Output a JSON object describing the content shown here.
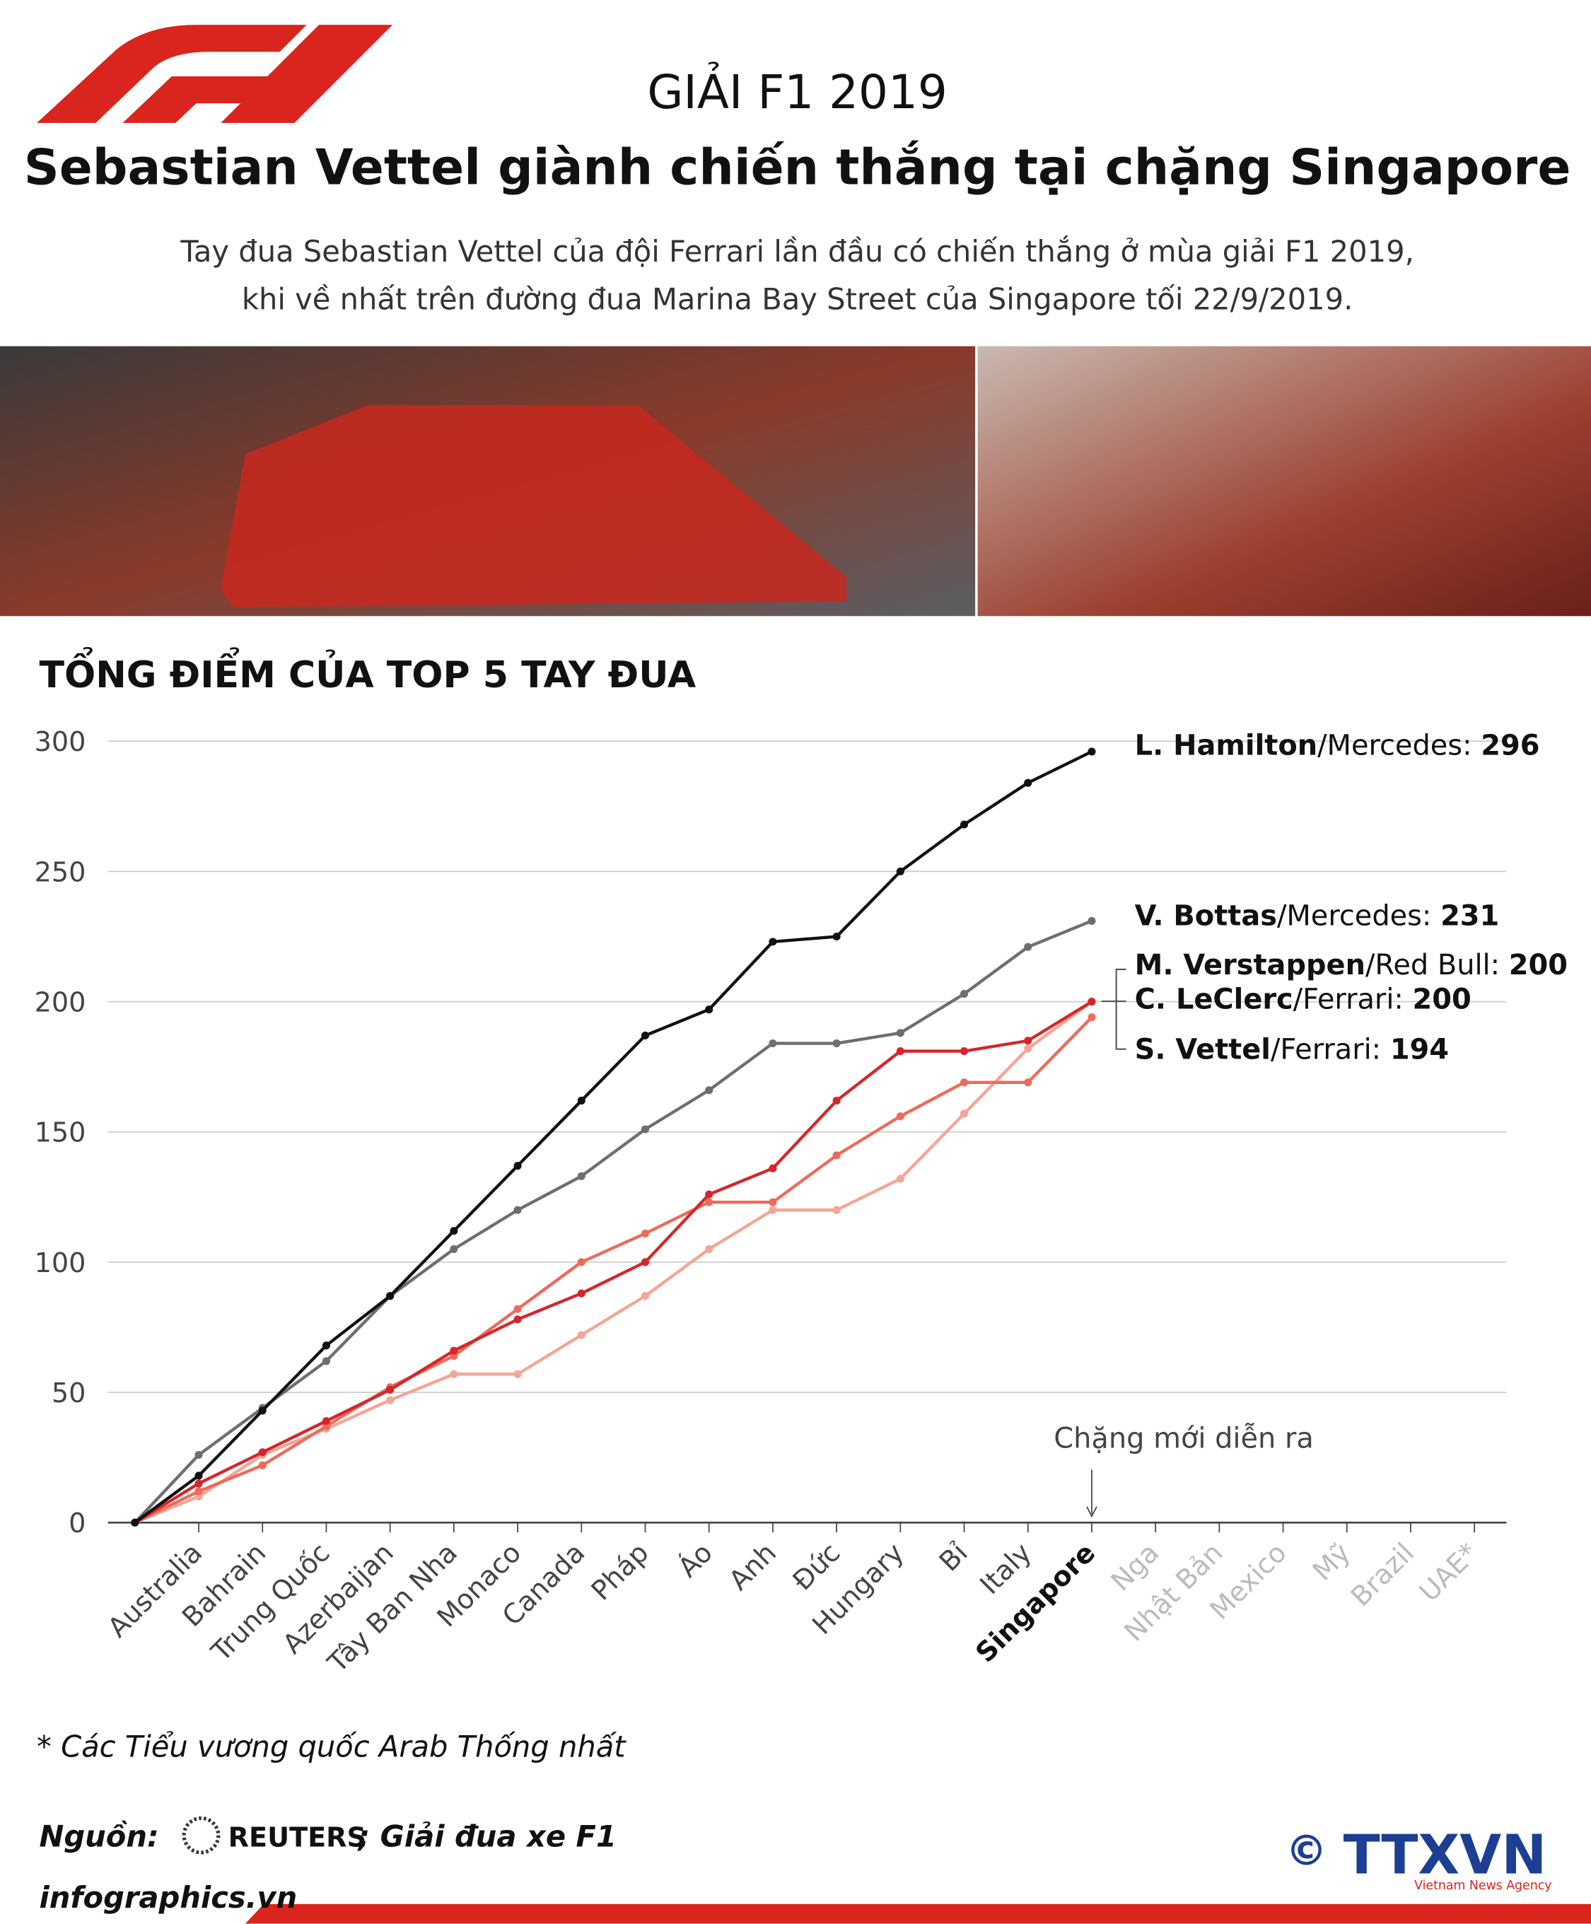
{
  "header": {
    "title": "GIẢI F1 2019",
    "heading": "Sebastian Vettel giành chiến thắng tại chặng Singapore",
    "subtitle": [
      "Tay đua Sebastian Vettel của đội Ferrari lần đầu có chiến thắng ở mùa giải F1 2019,",
      "khi về nhất trên đường đua Marina Bay Street của Singapore tối 22/9/2019."
    ]
  },
  "chart_data": {
    "type": "line",
    "title": "TỔNG ĐIỂM CỦA TOP 5 TAY ĐUA",
    "categories": [
      null,
      "Australia",
      "Bahrain",
      "Trung Quốc",
      "Azerbaijan",
      "Tây Ban Nha",
      "Monaco",
      "Canada",
      "Pháp",
      "Áo",
      "Anh",
      "Đức",
      "Hungary",
      "Bỉ",
      "Italy",
      "Singapore",
      "Nga",
      "Nhật Bản",
      "Mexico",
      "Mỹ",
      "Brazil",
      "UAE*"
    ],
    "series": [
      {
        "name": "L. Hamilton",
        "team": "/Mercedes:",
        "color": "#111111",
        "values": [
          0,
          18,
          43,
          68,
          87,
          112,
          137,
          162,
          187,
          197,
          223,
          225,
          250,
          268,
          284,
          296,
          null,
          null,
          null,
          null,
          null,
          null
        ]
      },
      {
        "name": "V. Bottas",
        "team": "/Mercedes:",
        "color": "#6e6e6e",
        "values": [
          0,
          26,
          44,
          62,
          87,
          105,
          120,
          133,
          151,
          166,
          184,
          184,
          188,
          203,
          221,
          231,
          null,
          null,
          null,
          null,
          null,
          null
        ]
      },
      {
        "name": "M. Verstappen",
        "team": "/Red Bull:",
        "color": "#d6262b",
        "values": [
          0,
          15,
          27,
          39,
          51,
          66,
          78,
          88,
          100,
          126,
          136,
          162,
          181,
          181,
          185,
          200,
          null,
          null,
          null,
          null,
          null,
          null
        ]
      },
      {
        "name": "C. LeClerc",
        "team": "/Ferrari:",
        "color": "#f5a594",
        "values": [
          0,
          10,
          26,
          36,
          47,
          57,
          57,
          72,
          87,
          105,
          120,
          120,
          132,
          157,
          182,
          200,
          null,
          null,
          null,
          null,
          null,
          null
        ]
      },
      {
        "name": "S. Vettel",
        "team": "/Ferrari:",
        "color": "#ec6b5c",
        "values": [
          0,
          12,
          22,
          37,
          52,
          64,
          82,
          100,
          111,
          123,
          123,
          141,
          156,
          169,
          169,
          194,
          null,
          null,
          null,
          null,
          null,
          null
        ]
      }
    ],
    "ylim": [
      0,
      300
    ],
    "yticks": [
      0,
      50,
      100,
      150,
      200,
      250,
      300
    ],
    "grid": true,
    "annotation": "Chặng mới diễn ra"
  },
  "footer": {
    "note": "* Các Tiểu vương quốc Arab Thống nhất",
    "source_label": "Nguồn:",
    "source_brand": "REUTERS",
    "source_rest": "; Giải đua xe F1",
    "site": "infographics.vn",
    "agency": "TTXVN",
    "agency_sub": "Vietnam News Agency",
    "copyright": "©"
  }
}
